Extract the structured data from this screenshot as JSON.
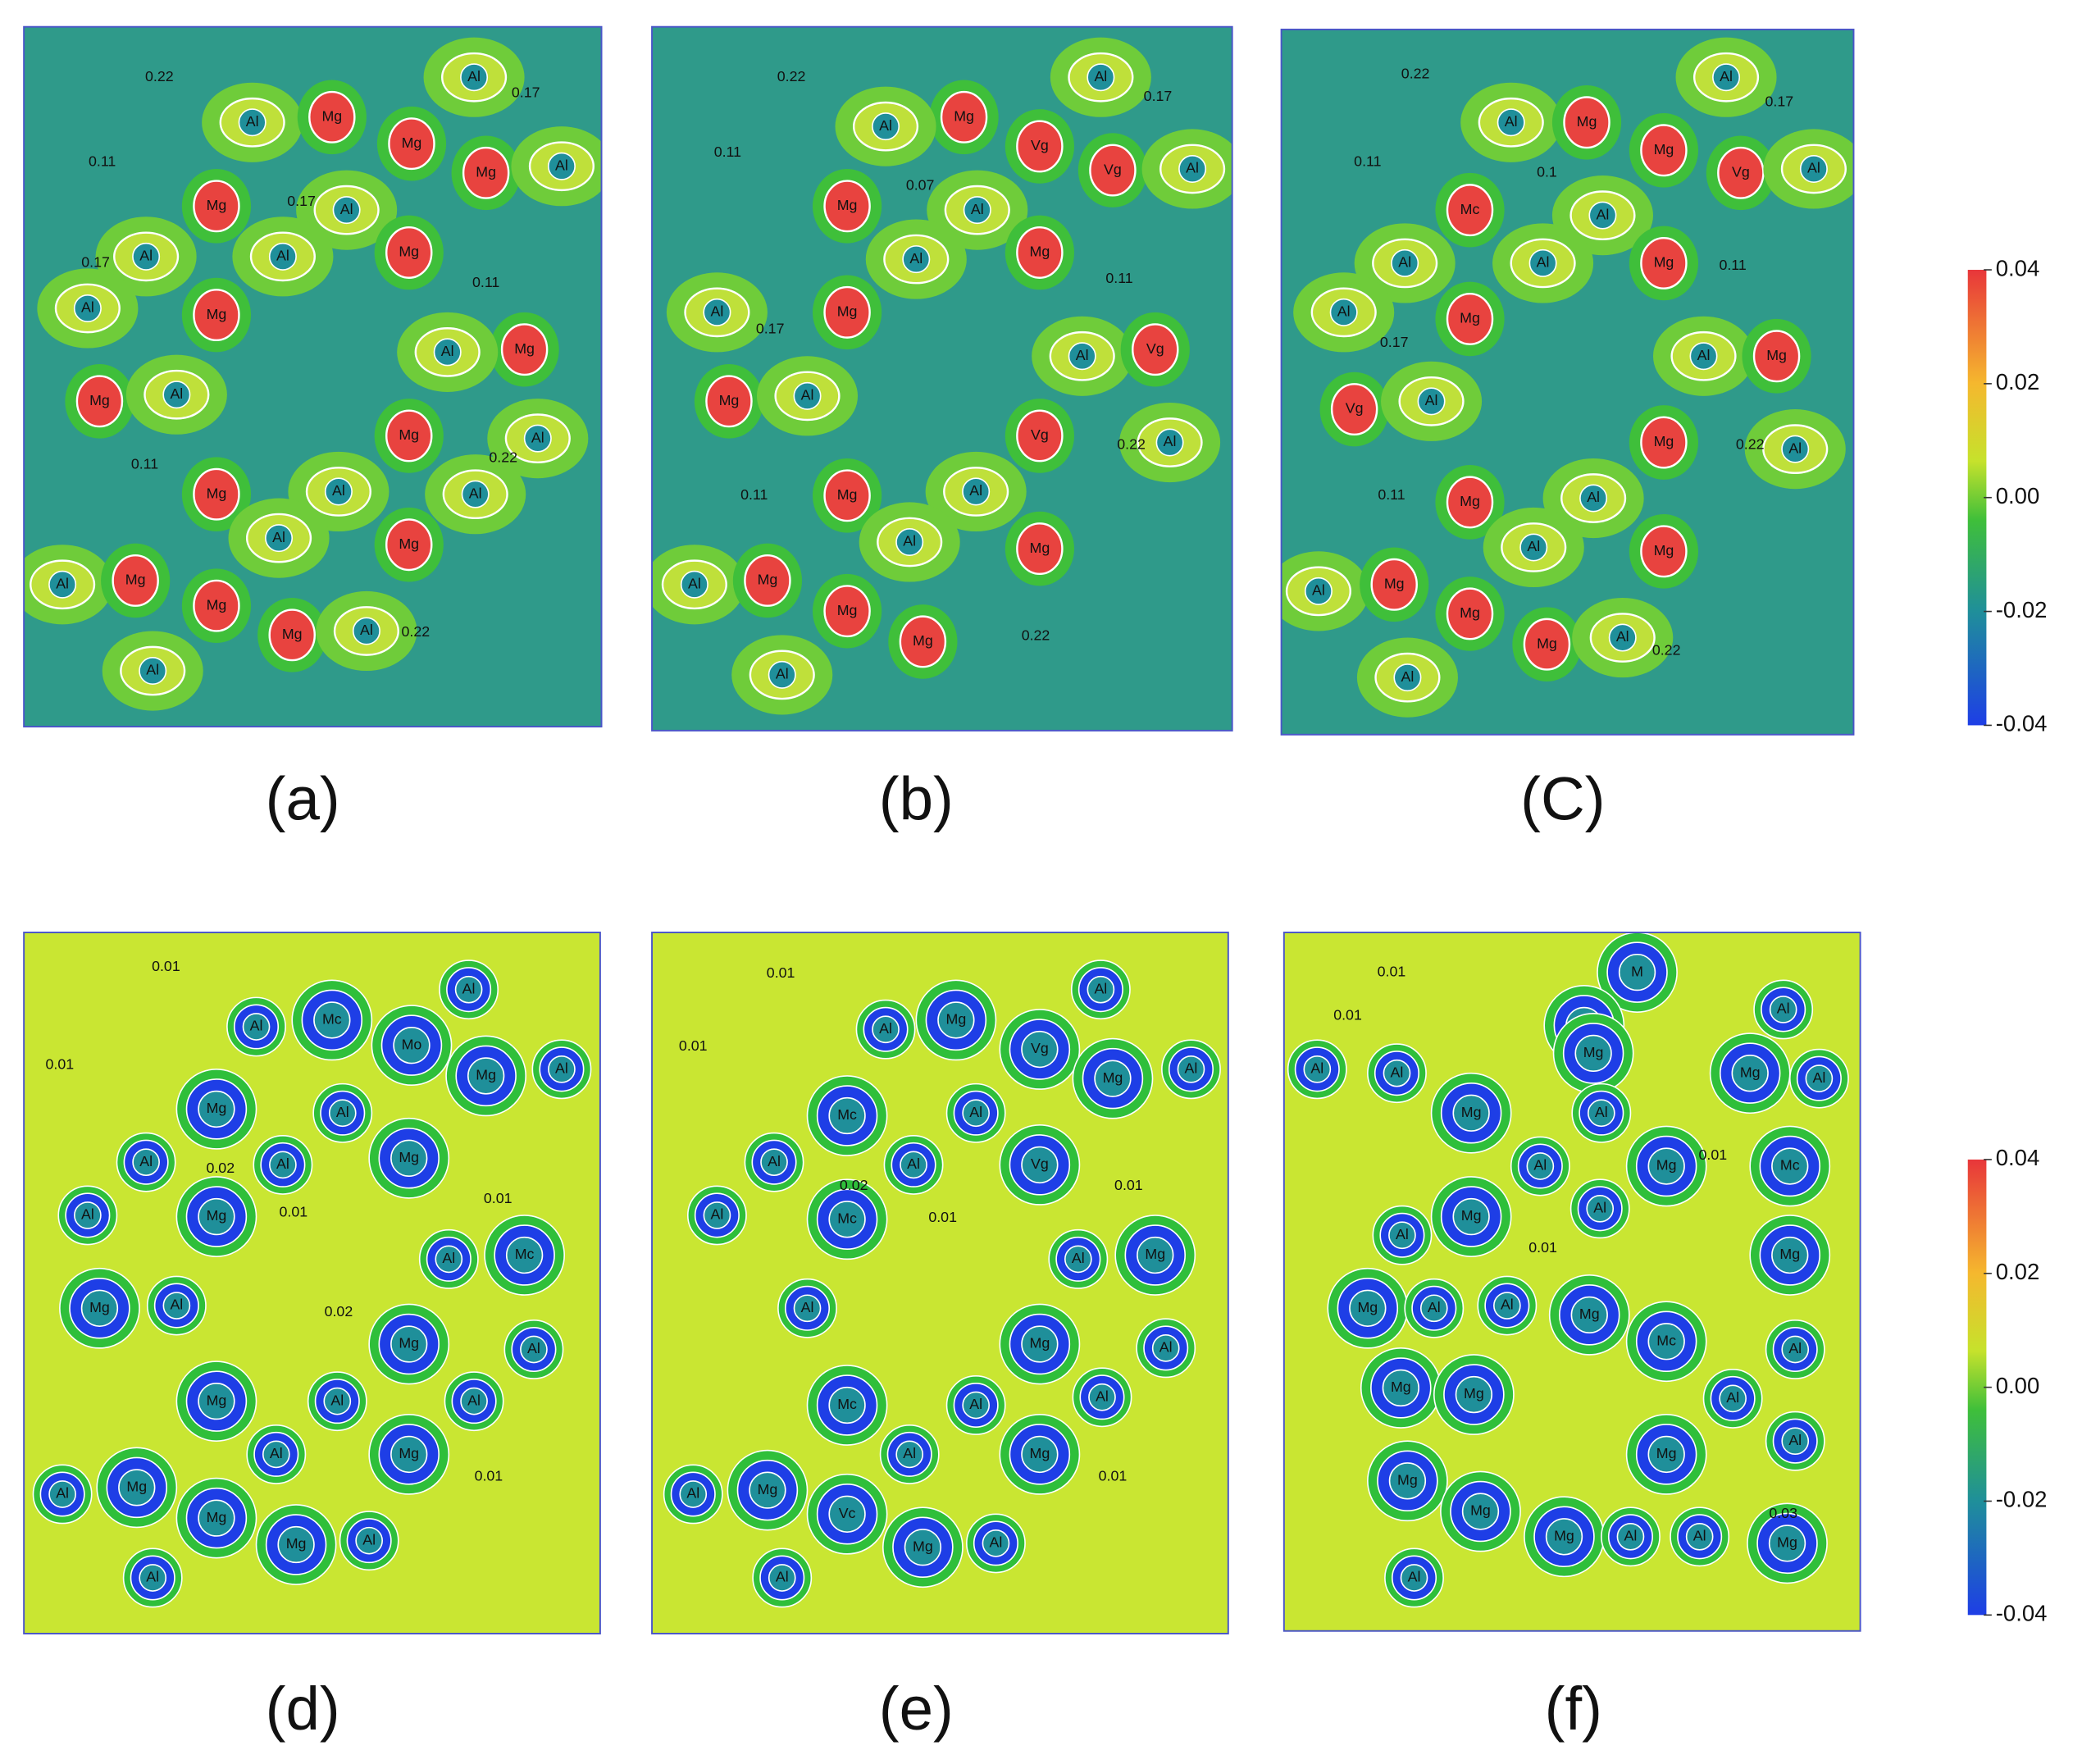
{
  "panels": [
    {
      "label": "(a)",
      "labels": [
        "Al",
        "Mg",
        "Mg",
        "Al",
        "Mg",
        "Al",
        "Mg",
        "Al",
        "Al",
        "Al",
        "Mg",
        "Al",
        "Mg",
        "Mg",
        "Al",
        "Mg",
        "Al",
        "Mg",
        "Al",
        "Al",
        "Mg",
        "Al",
        "Al",
        "Mg",
        "Al",
        "Mg",
        "Mg",
        "Mg",
        "Al",
        "Al",
        "0.22",
        "0.17",
        "0.11",
        "0.17",
        "0.17",
        "0.11",
        "0.22",
        "0.11",
        "0.22"
      ]
    },
    {
      "label": "(b)",
      "labels": [
        "Mg",
        "Al",
        "Al",
        "Vg",
        "Vg",
        "Al",
        "Mg",
        "Al",
        "Al",
        "Mg",
        "Al",
        "Mg",
        "Al",
        "Vg",
        "Mg",
        "Al",
        "Vg",
        "Al",
        "Mg",
        "Al",
        "Al",
        "Mg",
        "Al",
        "Mg",
        "Mg",
        "Mg",
        "Al",
        "0.22",
        "0.17",
        "0.11",
        "0.07",
        "0.11",
        "0.17",
        "0.22",
        "0.11",
        "0.22"
      ]
    },
    {
      "label": "(C)",
      "labels": [
        "Al",
        "Al",
        "Mg",
        "Mg",
        "Vg",
        "Al",
        "Mc",
        "Al",
        "Al",
        "Al",
        "Mg",
        "Al",
        "Mg",
        "Al",
        "Mg",
        "Vg",
        "Al",
        "Mg",
        "Al",
        "Mg",
        "Al",
        "Al",
        "Mg",
        "Al",
        "Mg",
        "Mg",
        "Mg",
        "Al",
        "Al",
        "0.22",
        "0.17",
        "0.11",
        "0.1",
        "0.11",
        "0.17",
        "0.22",
        "0.11",
        "0.22"
      ]
    },
    {
      "label": "(d)",
      "labels": [
        "Al",
        "Al",
        "Mc",
        "Mo",
        "Mg",
        "Al",
        "Mg",
        "Al",
        "Al",
        "Al",
        "Mg",
        "Al",
        "Mg",
        "Al",
        "Mc",
        "Mg",
        "Al",
        "Mg",
        "Al",
        "Mg",
        "Al",
        "Al",
        "Al",
        "Mg",
        "Al",
        "Mg",
        "Mg",
        "Mg",
        "Al",
        "Al",
        "0.01",
        "0.01",
        "0.02",
        "0.01",
        "0.01",
        "0.02",
        "0.01"
      ]
    },
    {
      "label": "(e)",
      "labels": [
        "Mg",
        "Al",
        "Al",
        "Vg",
        "Mg",
        "Al",
        "Mc",
        "Al",
        "Al",
        "Al",
        "Vg",
        "Al",
        "Mc",
        "Al",
        "Mg",
        "Al",
        "Mg",
        "Al",
        "Mc",
        "Al",
        "Al",
        "Al",
        "Mg",
        "Al",
        "Mg",
        "Vc",
        "Mg",
        "Al",
        "Al",
        "0.01",
        "0.01",
        "0.02",
        "0.01",
        "0.01",
        "0.01"
      ]
    },
    {
      "label": "(f)",
      "labels": [
        "M",
        "Mg",
        "Al",
        "Mg",
        "Al",
        "Al",
        "Mg",
        "Al",
        "Mg",
        "Al",
        "Al",
        "Mg",
        "Mc",
        "Al",
        "Mg",
        "Al",
        "Mg",
        "Mg",
        "Al",
        "Al",
        "Mg",
        "Mc",
        "Al",
        "Mg",
        "Mg",
        "Al",
        "Al",
        "Mg",
        "Mg",
        "Mg",
        "Mg",
        "Al",
        "Al",
        "Mg",
        "Al",
        "0.01",
        "0.01",
        "0.01",
        "0.01",
        "0.03"
      ]
    }
  ],
  "colorbars": [
    {
      "ticks": [
        "0.04",
        "0.02",
        "0.00",
        "-0.02",
        "-0.04"
      ]
    },
    {
      "ticks": [
        "0.04",
        "0.02",
        "0.00",
        "-0.02",
        "-0.04"
      ]
    }
  ]
}
